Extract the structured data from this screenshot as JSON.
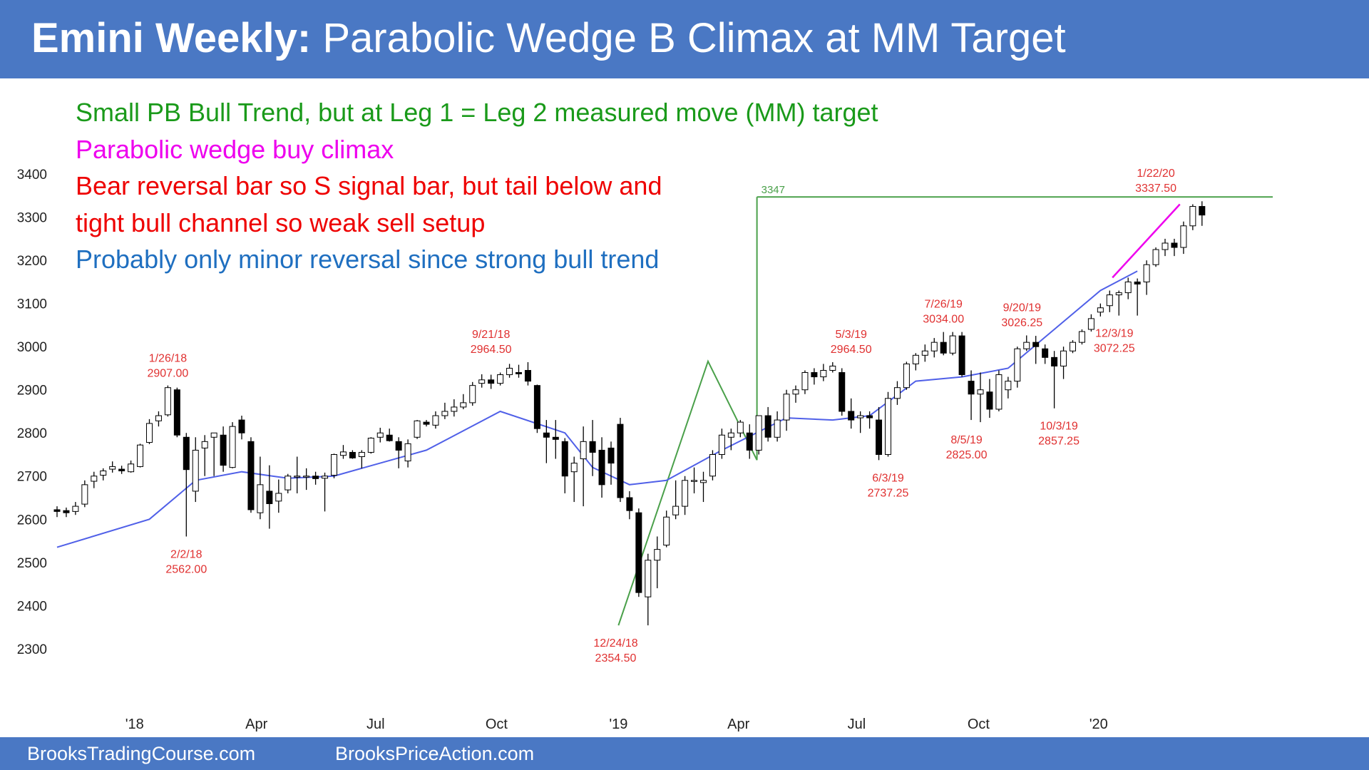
{
  "header": {
    "title_bold": "Emini Weekly:",
    "title_rest": "Parabolic Wedge B Climax at MM Target",
    "bar_color": "#4a78c4"
  },
  "annotations": [
    {
      "text": "Small PB Bull Trend, but at Leg 1 = Leg 2 measured move (MM) target",
      "color": "#1a9a1a"
    },
    {
      "text": "Parabolic wedge buy climax",
      "color": "#ee00ee"
    },
    {
      "text": "Bear reversal bar so S signal bar, but tail below and",
      "color": "#ee0000"
    },
    {
      "text": "tight bull channel so weak sell setup",
      "color": "#ee0000"
    },
    {
      "text": "Probably only minor reversal since strong bull trend",
      "color": "#1f6fc0"
    }
  ],
  "footer": {
    "left": "BrooksTradingCourse.com",
    "right": "BrooksPriceAction.com"
  },
  "chart_data": {
    "type": "candlestick",
    "ylim": [
      2260,
      3430
    ],
    "y_ticks": [
      2300,
      2400,
      2500,
      2600,
      2700,
      2800,
      2900,
      3000,
      3100,
      3200,
      3300,
      3400
    ],
    "x_ticks": [
      {
        "label": "'18",
        "week": 8.4
      },
      {
        "label": "Apr",
        "week": 21.6
      },
      {
        "label": "Jul",
        "week": 34.5
      },
      {
        "label": "Oct",
        "week": 47.6
      },
      {
        "label": "'19",
        "week": 60.8
      },
      {
        "label": "Apr",
        "week": 73.8
      },
      {
        "label": "Jul",
        "week": 86.6
      },
      {
        "label": "Oct",
        "week": 99.8
      },
      {
        "label": "'20",
        "week": 112.8
      }
    ],
    "x_range": [
      0,
      118
    ],
    "candles": [
      [
        2622,
        2630,
        2605,
        2618
      ],
      [
        2620,
        2627,
        2605,
        2615
      ],
      [
        2618,
        2640,
        2610,
        2630
      ],
      [
        2635,
        2690,
        2628,
        2680
      ],
      [
        2688,
        2710,
        2672,
        2700
      ],
      [
        2702,
        2718,
        2690,
        2712
      ],
      [
        2716,
        2734,
        2708,
        2722
      ],
      [
        2716,
        2724,
        2705,
        2712
      ],
      [
        2710,
        2736,
        2708,
        2728
      ],
      [
        2722,
        2775,
        2720,
        2772
      ],
      [
        2778,
        2832,
        2774,
        2822
      ],
      [
        2828,
        2850,
        2815,
        2840
      ],
      [
        2842,
        2910,
        2838,
        2905
      ],
      [
        2900,
        2905,
        2790,
        2795
      ],
      [
        2790,
        2800,
        2560,
        2715
      ],
      [
        2665,
        2790,
        2640,
        2760
      ],
      [
        2765,
        2795,
        2700,
        2780
      ],
      [
        2790,
        2800,
        2700,
        2800
      ],
      [
        2795,
        2815,
        2710,
        2725
      ],
      [
        2720,
        2825,
        2718,
        2815
      ],
      [
        2830,
        2840,
        2785,
        2800
      ],
      [
        2780,
        2790,
        2615,
        2622
      ],
      [
        2615,
        2745,
        2600,
        2680
      ],
      [
        2665,
        2725,
        2578,
        2636
      ],
      [
        2642,
        2692,
        2615,
        2660
      ],
      [
        2668,
        2705,
        2660,
        2700
      ],
      [
        2700,
        2745,
        2660,
        2700
      ],
      [
        2700,
        2718,
        2668,
        2700
      ],
      [
        2700,
        2710,
        2680,
        2694
      ],
      [
        2695,
        2708,
        2618,
        2700
      ],
      [
        2702,
        2752,
        2695,
        2750
      ],
      [
        2748,
        2772,
        2740,
        2756
      ],
      [
        2755,
        2760,
        2740,
        2742
      ],
      [
        2745,
        2760,
        2718,
        2755
      ],
      [
        2755,
        2790,
        2752,
        2788
      ],
      [
        2790,
        2812,
        2778,
        2800
      ],
      [
        2795,
        2810,
        2780,
        2782
      ],
      [
        2780,
        2790,
        2718,
        2760
      ],
      [
        2735,
        2785,
        2720,
        2775
      ],
      [
        2790,
        2830,
        2786,
        2828
      ],
      [
        2825,
        2830,
        2815,
        2820
      ],
      [
        2818,
        2850,
        2810,
        2840
      ],
      [
        2840,
        2870,
        2832,
        2850
      ],
      [
        2850,
        2878,
        2838,
        2860
      ],
      [
        2860,
        2890,
        2855,
        2870
      ],
      [
        2870,
        2918,
        2863,
        2910
      ],
      [
        2915,
        2936,
        2905,
        2923
      ],
      [
        2923,
        2935,
        2902,
        2915
      ],
      [
        2915,
        2940,
        2910,
        2935
      ],
      [
        2935,
        2960,
        2928,
        2950
      ],
      [
        2940,
        2958,
        2928,
        2937
      ],
      [
        2945,
        2964,
        2910,
        2920
      ],
      [
        2910,
        2912,
        2800,
        2810
      ],
      [
        2800,
        2830,
        2730,
        2790
      ],
      [
        2790,
        2830,
        2740,
        2785
      ],
      [
        2780,
        2788,
        2660,
        2700
      ],
      [
        2710,
        2745,
        2640,
        2730
      ],
      [
        2740,
        2815,
        2630,
        2780
      ],
      [
        2780,
        2830,
        2700,
        2755
      ],
      [
        2760,
        2790,
        2650,
        2680
      ],
      [
        2765,
        2780,
        2680,
        2730
      ],
      [
        2820,
        2835,
        2640,
        2650
      ],
      [
        2650,
        2665,
        2600,
        2620
      ],
      [
        2615,
        2625,
        2420,
        2430
      ],
      [
        2420,
        2520,
        2354,
        2505
      ],
      [
        2505,
        2560,
        2440,
        2530
      ],
      [
        2540,
        2620,
        2535,
        2605
      ],
      [
        2610,
        2690,
        2600,
        2630
      ],
      [
        2630,
        2700,
        2610,
        2690
      ],
      [
        2690,
        2720,
        2660,
        2690
      ],
      [
        2685,
        2710,
        2640,
        2690
      ],
      [
        2700,
        2760,
        2690,
        2750
      ],
      [
        2750,
        2810,
        2740,
        2795
      ],
      [
        2790,
        2810,
        2760,
        2800
      ],
      [
        2800,
        2830,
        2790,
        2825
      ],
      [
        2800,
        2820,
        2740,
        2760
      ],
      [
        2760,
        2840,
        2750,
        2840
      ],
      [
        2840,
        2860,
        2780,
        2790
      ],
      [
        2790,
        2850,
        2780,
        2830
      ],
      [
        2830,
        2900,
        2805,
        2890
      ],
      [
        2890,
        2910,
        2870,
        2900
      ],
      [
        2900,
        2945,
        2890,
        2940
      ],
      [
        2940,
        2950,
        2912,
        2930
      ],
      [
        2930,
        2960,
        2920,
        2945
      ],
      [
        2945,
        2964,
        2940,
        2955
      ],
      [
        2940,
        2950,
        2840,
        2850
      ],
      [
        2850,
        2880,
        2810,
        2830
      ],
      [
        2835,
        2850,
        2800,
        2840
      ],
      [
        2840,
        2850,
        2810,
        2835
      ],
      [
        2830,
        2860,
        2737,
        2750
      ],
      [
        2750,
        2895,
        2745,
        2880
      ],
      [
        2880,
        2920,
        2865,
        2905
      ],
      [
        2905,
        2965,
        2900,
        2960
      ],
      [
        2960,
        2985,
        2945,
        2980
      ],
      [
        2980,
        3005,
        2965,
        2990
      ],
      [
        2990,
        3020,
        2975,
        3010
      ],
      [
        3010,
        3034,
        2980,
        2985
      ],
      [
        2985,
        3034,
        2980,
        3025
      ],
      [
        3025,
        3034,
        2930,
        2935
      ],
      [
        2920,
        2945,
        2830,
        2890
      ],
      [
        2890,
        2940,
        2825,
        2900
      ],
      [
        2895,
        2925,
        2835,
        2855
      ],
      [
        2855,
        2945,
        2850,
        2935
      ],
      [
        2900,
        2930,
        2880,
        2920
      ],
      [
        2920,
        3000,
        2905,
        2995
      ],
      [
        2995,
        3026,
        2990,
        3010
      ],
      [
        3010,
        3025,
        2960,
        3000
      ],
      [
        2995,
        3005,
        2960,
        2975
      ],
      [
        2975,
        2990,
        2857,
        2955
      ],
      [
        2955,
        3000,
        2925,
        2990
      ],
      [
        2990,
        3015,
        2985,
        3010
      ],
      [
        3010,
        3040,
        3005,
        3035
      ],
      [
        3040,
        3075,
        3035,
        3065
      ],
      [
        3080,
        3100,
        3070,
        3090
      ],
      [
        3095,
        3130,
        3080,
        3120
      ],
      [
        3120,
        3130,
        3072,
        3125
      ],
      [
        3125,
        3160,
        3110,
        3150
      ],
      [
        3150,
        3158,
        3072,
        3145
      ],
      [
        3150,
        3200,
        3120,
        3190
      ],
      [
        3190,
        3230,
        3185,
        3225
      ],
      [
        3225,
        3250,
        3210,
        3240
      ],
      [
        3240,
        3250,
        3210,
        3230
      ],
      [
        3230,
        3290,
        3215,
        3280
      ],
      [
        3280,
        3330,
        3270,
        3325
      ],
      [
        3325,
        3337,
        3280,
        3305
      ]
    ],
    "ema_anchor_weeks": [
      0,
      10,
      15,
      20,
      25,
      30,
      40,
      48,
      55,
      58,
      62,
      66,
      72,
      79,
      84,
      88,
      93,
      98,
      103,
      108,
      113,
      117
    ],
    "ema_anchor_values": [
      2535,
      2600,
      2690,
      2710,
      2695,
      2700,
      2760,
      2850,
      2800,
      2720,
      2680,
      2690,
      2760,
      2835,
      2830,
      2840,
      2920,
      2930,
      2950,
      3040,
      3130,
      3175
    ],
    "price_labels": [
      {
        "date": "1/26/18",
        "value": "2907.00",
        "week": 12,
        "side": "above",
        "price": 2910
      },
      {
        "date": "2/2/18",
        "value": "2562.00",
        "week": 14,
        "side": "below",
        "price": 2560
      },
      {
        "date": "9/21/18",
        "value": "2964.50",
        "week": 47,
        "side": "above",
        "price": 2966
      },
      {
        "date": "12/24/18",
        "value": "2354.50",
        "week": 60.5,
        "side": "below",
        "price": 2354
      },
      {
        "date": "5/3/19",
        "value": "2964.50",
        "week": 86,
        "side": "above",
        "price": 2966
      },
      {
        "date": "6/3/19",
        "value": "2737.25",
        "week": 90,
        "side": "below",
        "price": 2737
      },
      {
        "date": "7/26/19",
        "value": "3034.00",
        "week": 96,
        "side": "above",
        "price": 3036
      },
      {
        "date": "8/5/19",
        "value": "2825.00",
        "week": 98.5,
        "side": "below",
        "price": 2825
      },
      {
        "date": "9/20/19",
        "value": "3026.25",
        "week": 104.5,
        "side": "above",
        "price": 3028
      },
      {
        "date": "10/3/19",
        "value": "2857.25",
        "week": 108.5,
        "side": "below",
        "price": 2857
      },
      {
        "date": "12/3/19",
        "value": "3072.25",
        "week": 114.5,
        "side": "below",
        "price": 3072
      },
      {
        "date": "1/22/20",
        "value": "3337.50",
        "week": 119,
        "side": "above",
        "price": 3339
      }
    ],
    "mm_target": {
      "label": "3347",
      "value": 3347
    },
    "colors": {
      "green": "#4aa04a",
      "magenta": "#ee00ee",
      "ema": "#5060e8",
      "label_red": "#e03030",
      "candle_up_fill": "#ffffff",
      "candle_down_fill": "#000000"
    }
  }
}
